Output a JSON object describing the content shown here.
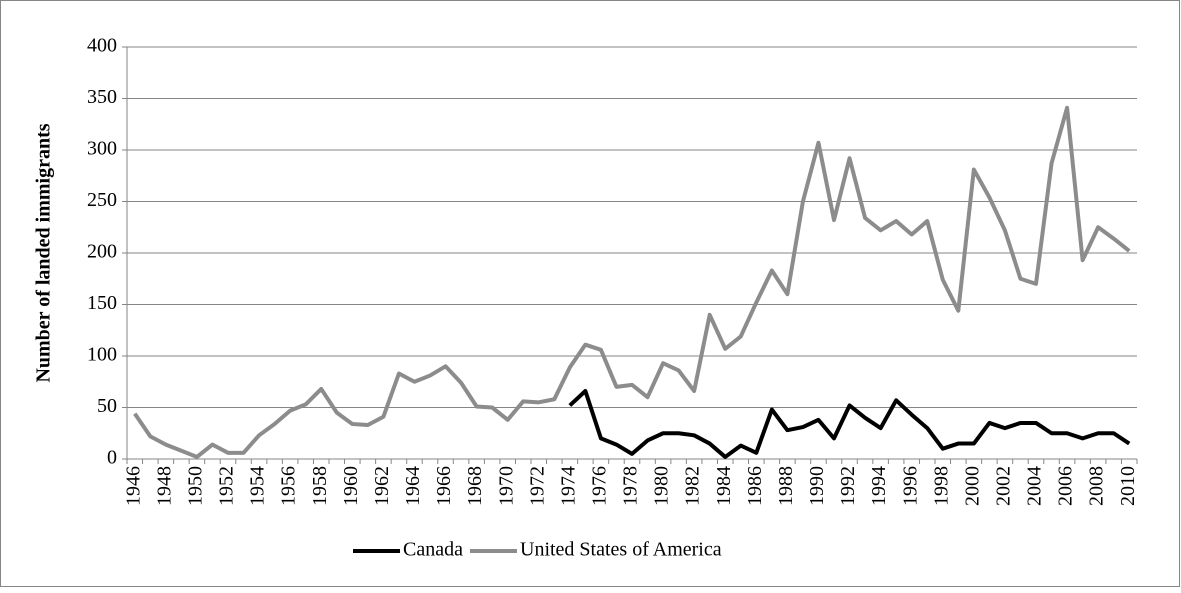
{
  "chart_data": {
    "type": "line",
    "y_label": "Number of landed immigrants",
    "categories": [
      "1946",
      null,
      "1948",
      null,
      "1950",
      null,
      "1952",
      null,
      "1954",
      null,
      "1956",
      null,
      "1958",
      null,
      "1960",
      null,
      "1962",
      null,
      "1964",
      null,
      "1966",
      null,
      "1968",
      null,
      "1970",
      null,
      "1972",
      null,
      "1974",
      null,
      "1976",
      null,
      "1978",
      null,
      "1980",
      null,
      "1982",
      null,
      "1984",
      null,
      "1986",
      null,
      "1988",
      null,
      "1990",
      null,
      "1992",
      null,
      "1994",
      null,
      "1996",
      null,
      "1998",
      null,
      "2000",
      null,
      "2002",
      null,
      "2004",
      null,
      "2006",
      null,
      "2008",
      null,
      "2010"
    ],
    "series": [
      {
        "name": "Canada",
        "color": "#000000",
        "values": [
          null,
          null,
          null,
          null,
          null,
          null,
          null,
          null,
          null,
          null,
          null,
          null,
          null,
          null,
          null,
          null,
          null,
          null,
          null,
          null,
          null,
          null,
          null,
          null,
          null,
          null,
          null,
          null,
          52,
          66,
          20,
          14,
          5,
          18,
          25,
          25,
          23,
          15,
          2,
          13,
          6,
          48,
          28,
          31,
          38,
          20,
          52,
          40,
          30,
          57,
          43,
          30,
          10,
          15,
          15,
          35,
          30,
          35,
          35,
          25,
          25,
          20,
          25,
          25,
          15
        ]
      },
      {
        "name": "United States of America",
        "color": "#8c8c8c",
        "values": [
          44,
          22,
          14,
          8,
          2,
          14,
          6,
          6,
          23,
          34,
          47,
          53,
          68,
          45,
          34,
          33,
          41,
          83,
          75,
          81,
          90,
          74,
          51,
          50,
          38,
          56,
          55,
          58,
          89,
          111,
          106,
          70,
          72,
          60,
          93,
          86,
          66,
          140,
          107,
          119,
          152,
          183,
          160,
          250,
          307,
          232,
          292,
          234,
          222,
          231,
          218,
          231,
          174,
          144,
          281,
          254,
          222,
          175,
          170,
          287,
          341,
          193,
          225,
          214,
          202
        ]
      }
    ],
    "ylim": [
      0,
      400
    ],
    "yticks": [
      0,
      50,
      100,
      150,
      200,
      250,
      300,
      350,
      400
    ],
    "grid": true,
    "legend": "bottom"
  }
}
